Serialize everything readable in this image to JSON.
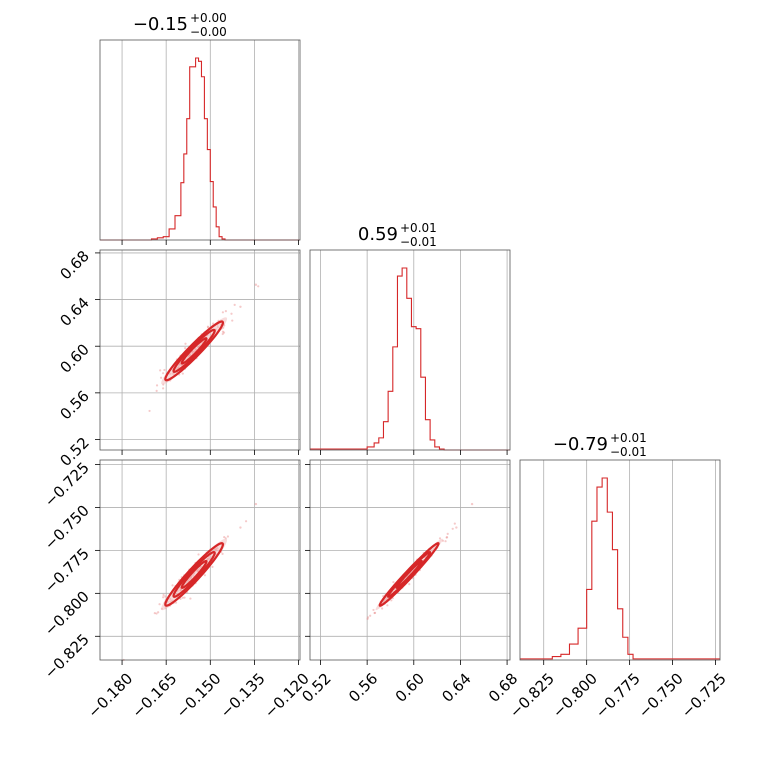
{
  "chart_data": {
    "type": "corner",
    "color": "#d62728",
    "parameters": [
      {
        "range": [
          -0.1875,
          -0.1195
        ],
        "ticks": [
          -0.18,
          -0.165,
          -0.15,
          -0.135,
          -0.12
        ],
        "tick_labels": [
          "−0.180",
          "−0.165",
          "−0.150",
          "−0.135",
          "−0.120"
        ],
        "title_value": "−0.15",
        "title_plus": "+0.00",
        "title_minus": "−0.00",
        "mean": -0.1555,
        "sigma": 0.0035
      },
      {
        "range": [
          0.511,
          0.6825
        ],
        "ticks": [
          0.52,
          0.56,
          0.6,
          0.64,
          0.68
        ],
        "tick_labels": [
          "0.52",
          "0.56",
          "0.60",
          "0.64",
          "0.68"
        ],
        "title_value": "0.59",
        "title_plus": "+0.01",
        "title_minus": "−0.01",
        "mean": 0.596,
        "sigma": 0.009
      },
      {
        "range": [
          -0.8388,
          -0.7224
        ],
        "ticks": [
          -0.825,
          -0.8,
          -0.775,
          -0.75,
          -0.725
        ],
        "tick_labels": [
          "−0.825",
          "−0.800",
          "−0.775",
          "−0.750",
          "−0.725"
        ],
        "title_value": "−0.79",
        "title_plus": "+0.01",
        "title_minus": "−0.01",
        "mean": -0.789,
        "sigma": 0.0065
      }
    ],
    "histograms": [
      {
        "edges": [
          -0.1875,
          -0.17,
          -0.168,
          -0.166,
          -0.164,
          -0.162,
          -0.16,
          -0.159,
          -0.158,
          -0.157,
          -0.156,
          -0.155,
          -0.154,
          -0.153,
          -0.152,
          -0.151,
          -0.15,
          -0.149,
          -0.148,
          -0.147,
          -0.146,
          -0.145,
          -0.1195
        ],
        "counts": [
          0,
          1,
          2,
          3,
          10,
          22,
          52,
          78,
          110,
          157,
          157,
          165,
          162,
          148,
          110,
          82,
          53,
          30,
          12,
          3,
          1,
          0
        ]
      },
      {
        "edges": [
          0.511,
          0.56,
          0.566,
          0.57,
          0.574,
          0.578,
          0.582,
          0.586,
          0.59,
          0.594,
          0.598,
          0.602,
          0.606,
          0.61,
          0.614,
          0.618,
          0.622,
          0.626,
          0.6825
        ],
        "counts": [
          1,
          3,
          7,
          12,
          28,
          58,
          102,
          172,
          180,
          150,
          122,
          120,
          72,
          30,
          10,
          3,
          1,
          0
        ]
      },
      {
        "edges": [
          -0.8388,
          -0.82,
          -0.815,
          -0.81,
          -0.805,
          -0.8,
          -0.797,
          -0.794,
          -0.791,
          -0.788,
          -0.785,
          -0.782,
          -0.779,
          -0.776,
          -0.773,
          -0.7224
        ],
        "counts": [
          1,
          3,
          5,
          14,
          28,
          62,
          122,
          152,
          160,
          130,
          97,
          45,
          20,
          5,
          1
        ]
      }
    ],
    "contour_levels": [
      1.2,
      2.0,
      2.8
    ]
  }
}
